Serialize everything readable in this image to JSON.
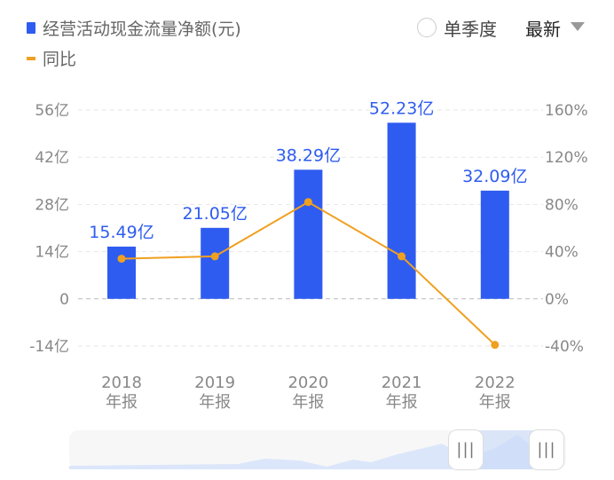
{
  "header": {
    "legend_bar": "经营活动现金流量净额(元)",
    "legend_line": "同比",
    "radio_label": "单季度",
    "select_value": "最新"
  },
  "colors": {
    "bar": "#2f5cf0",
    "line": "#f0a020",
    "label": "#2f5cf0"
  },
  "chart_data": {
    "type": "bar",
    "categories": [
      "2018\n年报",
      "2019\n年报",
      "2020\n年报",
      "2021\n年报",
      "2022\n年报"
    ],
    "category_years": [
      "2018",
      "2019",
      "2020",
      "2021",
      "2022"
    ],
    "category_suffix": "年报",
    "series": [
      {
        "name": "经营活动现金流量净额(元)",
        "type": "bar",
        "axis": "left",
        "values": [
          15.49,
          21.05,
          38.29,
          52.23,
          32.09
        ],
        "labels": [
          "15.49亿",
          "21.05亿",
          "38.29亿",
          "52.23亿",
          "32.09亿"
        ]
      },
      {
        "name": "同比",
        "type": "line",
        "axis": "right",
        "values": [
          34,
          36,
          82,
          36,
          -39
        ]
      }
    ],
    "left_axis": {
      "ylim": [
        -14,
        56
      ],
      "ticks": [
        56,
        42,
        28,
        14,
        0,
        -14
      ],
      "tick_labels": [
        "56亿",
        "42亿",
        "28亿",
        "14亿",
        "0",
        "-14亿"
      ]
    },
    "right_axis": {
      "ylim": [
        -40,
        160
      ],
      "ticks": [
        160,
        120,
        80,
        40,
        0,
        -40
      ],
      "tick_labels": [
        "160%",
        "120%",
        "80%",
        "40%",
        "0%",
        "-40%"
      ]
    },
    "grid": true,
    "legend": "top-left"
  },
  "slider": {
    "handle_glyph": "|||"
  }
}
